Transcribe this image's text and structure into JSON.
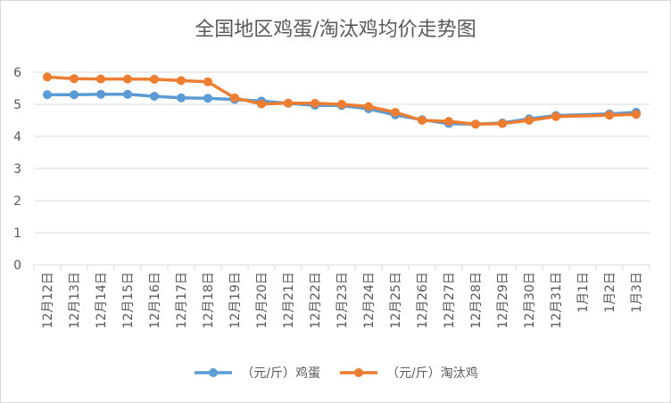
{
  "chart_data": {
    "type": "line",
    "title": "全国地区鸡蛋/淘汰鸡均价走势图",
    "categories": [
      "12月12日",
      "12月13日",
      "12月14日",
      "12月15日",
      "12月16日",
      "12月17日",
      "12月18日",
      "12月19日",
      "12月20日",
      "12月21日",
      "12月22日",
      "12月23日",
      "12月24日",
      "12月25日",
      "12月26日",
      "12月27日",
      "12月28日",
      "12月29日",
      "12月30日",
      "12月31日",
      "1月1日",
      "1月2日",
      "1月3日"
    ],
    "series": [
      {
        "name": "（元/斤）鸡蛋",
        "color": "#5B9BD5",
        "values": [
          5.3,
          5.3,
          5.31,
          5.31,
          5.25,
          5.2,
          5.19,
          5.15,
          5.1,
          5.03,
          4.97,
          4.96,
          4.86,
          4.67,
          4.52,
          4.4,
          4.38,
          4.42,
          4.55,
          4.65,
          null,
          4.7,
          4.75
        ]
      },
      {
        "name": "（元/斤）淘汰鸡",
        "color": "#ED7D31",
        "values": [
          5.85,
          5.8,
          5.79,
          5.79,
          5.78,
          5.74,
          5.7,
          5.2,
          5.01,
          5.04,
          5.03,
          5.0,
          4.93,
          4.75,
          4.5,
          4.47,
          4.38,
          4.4,
          4.5,
          4.62,
          null,
          4.66,
          4.69
        ]
      }
    ],
    "ylim": [
      0,
      6
    ],
    "yticks": [
      "0",
      "1",
      "2",
      "3",
      "4",
      "5",
      "6"
    ],
    "grid": true,
    "legend_position": "bottom"
  }
}
